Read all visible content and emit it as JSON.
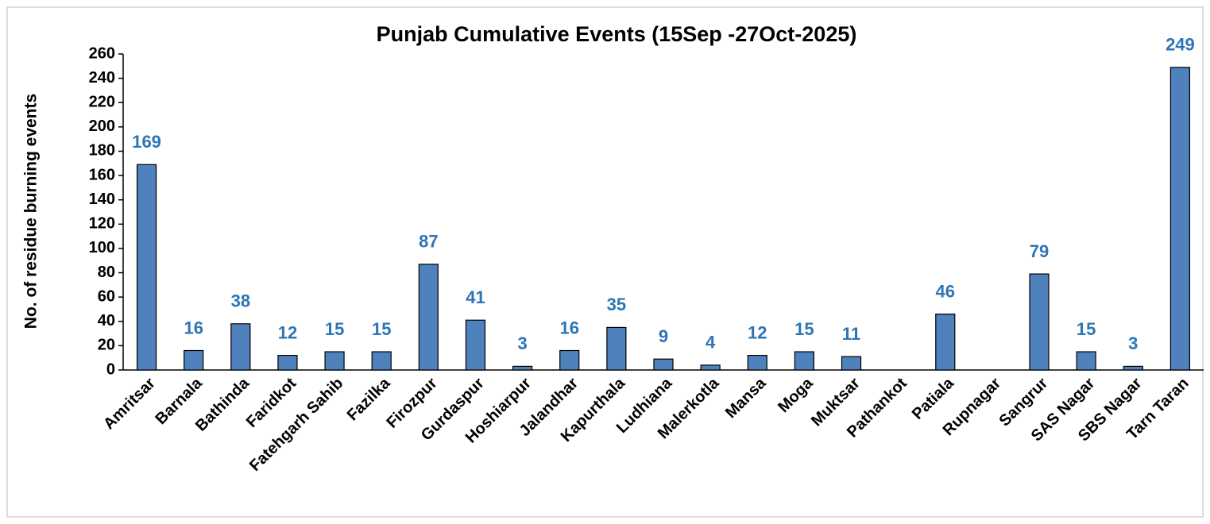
{
  "chart_data": {
    "type": "bar",
    "title": "Punjab Cumulative Events (15Sep -27Oct-2025)",
    "y_label": "No. of residue burning events",
    "categories": [
      "Amritsar",
      "Barnala",
      "Bathinda",
      "Faridkot",
      "Fatehgarh Sahib",
      "Fazilka",
      "Firozpur",
      "Gurdaspur",
      "Hoshiarpur",
      "Jalandhar",
      "Kapurthala",
      "Ludhiana",
      "Malerkotla",
      "Mansa",
      "Moga",
      "Muktsar",
      "Pathankot",
      "Patiala",
      "Rupnagar",
      "Sangrur",
      "SAS Nagar",
      "SBS Nagar",
      "Tarn Taran"
    ],
    "values": [
      169,
      16,
      38,
      12,
      15,
      15,
      87,
      41,
      3,
      16,
      35,
      9,
      4,
      12,
      15,
      11,
      null,
      46,
      null,
      79,
      15,
      3,
      249
    ],
    "color": "#4f81bd",
    "label_color": "#2e75b6",
    "ylim": [
      0,
      260
    ],
    "yticks": [
      0,
      20,
      40,
      60,
      80,
      100,
      120,
      140,
      160,
      180,
      200,
      220,
      240,
      260
    ],
    "grid": false
  }
}
